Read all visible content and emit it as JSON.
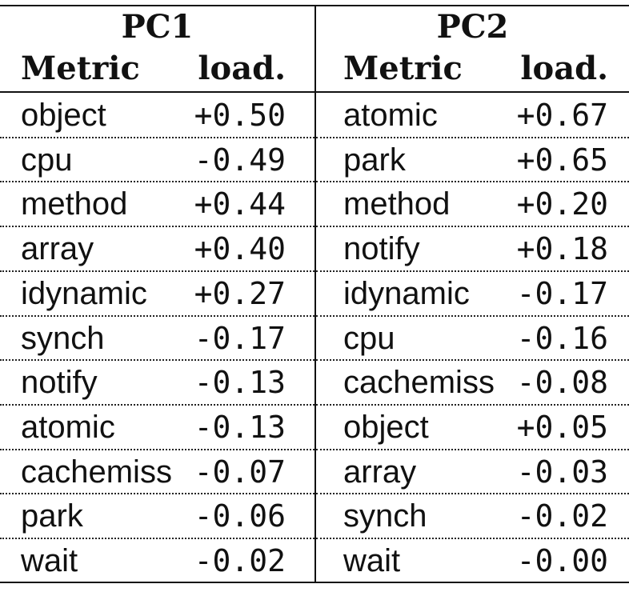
{
  "pc1": {
    "title": "PC1",
    "metric_header": "Metric",
    "load_header": "load.",
    "rows": [
      {
        "metric": "object",
        "load": "+0.50"
      },
      {
        "metric": "cpu",
        "load": "-0.49"
      },
      {
        "metric": "method",
        "load": "+0.44"
      },
      {
        "metric": "array",
        "load": "+0.40"
      },
      {
        "metric": "idynamic",
        "load": "+0.27"
      },
      {
        "metric": "synch",
        "load": "-0.17"
      },
      {
        "metric": "notify",
        "load": "-0.13"
      },
      {
        "metric": "atomic",
        "load": "-0.13"
      },
      {
        "metric": "cachemiss",
        "load": "-0.07"
      },
      {
        "metric": "park",
        "load": "-0.06"
      },
      {
        "metric": "wait",
        "load": "-0.02"
      }
    ]
  },
  "pc2": {
    "title": "PC2",
    "metric_header": "Metric",
    "load_header": "load.",
    "rows": [
      {
        "metric": "atomic",
        "load": "+0.67"
      },
      {
        "metric": "park",
        "load": "+0.65"
      },
      {
        "metric": "method",
        "load": "+0.20"
      },
      {
        "metric": "notify",
        "load": "+0.18"
      },
      {
        "metric": "idynamic",
        "load": "-0.17"
      },
      {
        "metric": "cpu",
        "load": "-0.16"
      },
      {
        "metric": "cachemiss",
        "load": "-0.08"
      },
      {
        "metric": "object",
        "load": "+0.05"
      },
      {
        "metric": "array",
        "load": "-0.03"
      },
      {
        "metric": "synch",
        "load": "-0.02"
      },
      {
        "metric": "wait",
        "load": "-0.00"
      }
    ]
  }
}
